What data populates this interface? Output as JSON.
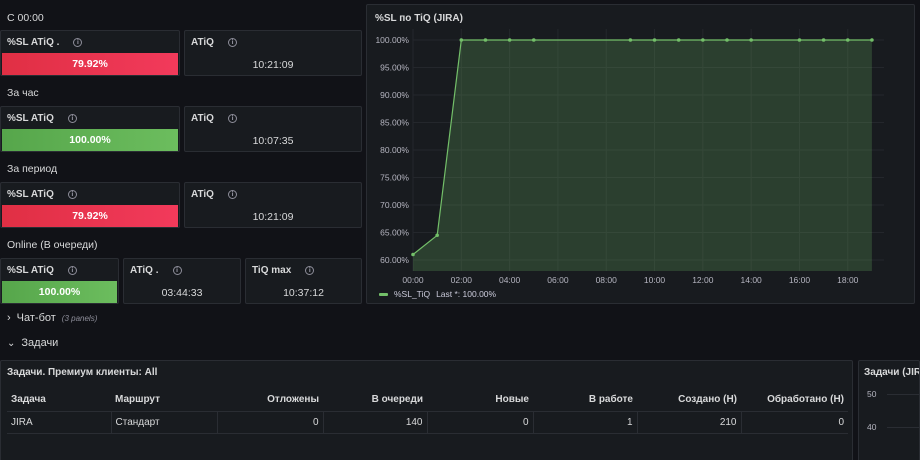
{
  "sections": {
    "since_midnight": "С 00:00",
    "per_hour": "За час",
    "per_period": "За период",
    "online": "Online (В очереди)"
  },
  "stat_panels": {
    "p1_sl": {
      "title": "%SL ATiQ .",
      "value": "79.92%",
      "status": "red"
    },
    "p1_atiq": {
      "title": "ATiQ",
      "value": "10:21:09"
    },
    "p2_sl": {
      "title": "%SL ATiQ",
      "value": "100.00%",
      "status": "green"
    },
    "p2_atiq": {
      "title": "ATiQ",
      "value": "10:07:35"
    },
    "p3_sl": {
      "title": "%SL ATiQ",
      "value": "79.92%",
      "status": "red"
    },
    "p3_atiq": {
      "title": "ATiQ",
      "value": "10:21:09"
    },
    "p4_sl": {
      "title": "%SL ATiQ",
      "value": "100.00%",
      "status": "green"
    },
    "p4_atiq": {
      "title": "ATiQ .",
      "value": "03:44:33"
    },
    "p4_tiq": {
      "title": "TiQ max",
      "value": "10:37:12"
    }
  },
  "chart_panel": {
    "title": "%SL по TiQ (JIRA)",
    "legend_label": "%SL_TiQ",
    "legend_last": "Last *: 100.00%"
  },
  "chart_data": {
    "type": "area",
    "title": "%SL по TiQ (JIRA)",
    "x_ticks": [
      "00:00",
      "02:00",
      "04:00",
      "06:00",
      "08:00",
      "10:00",
      "12:00",
      "14:00",
      "16:00",
      "18:00"
    ],
    "y_ticks": [
      "60.00%",
      "65.00%",
      "70.00%",
      "75.00%",
      "80.00%",
      "85.00%",
      "90.00%",
      "95.00%",
      "100.00%"
    ],
    "ylim": [
      58,
      102
    ],
    "xlim_hours": [
      0,
      19.5
    ],
    "grid": true,
    "legend_position": "bottom-left",
    "series": [
      {
        "name": "%SL_TiQ",
        "color": "#73bf69",
        "x_hours": [
          0,
          1,
          2,
          3,
          4,
          5,
          9,
          10,
          11,
          12,
          13,
          14,
          16,
          17,
          18,
          19
        ],
        "values": [
          61,
          64.5,
          100,
          100,
          100,
          100,
          100,
          100,
          100,
          100,
          100,
          100,
          100,
          100,
          100,
          100
        ]
      }
    ]
  },
  "rows": {
    "chatbot": {
      "title": "Чат-бот",
      "meta": "(3 panels)",
      "chevron": "›"
    },
    "tasks": {
      "title": "Задачи",
      "chevron": "⌄"
    }
  },
  "table_panel": {
    "title": "Задачи. Премиум клиенты: All",
    "columns": [
      "Задача",
      "Маршрут",
      "Отложены",
      "В очереди",
      "Новые",
      "В работе",
      "Создано (Н)",
      "Обработано (Н)"
    ],
    "rows": [
      [
        "JIRA",
        "Стандарт",
        "0",
        "140",
        "0",
        "1",
        "210",
        "0"
      ]
    ]
  },
  "right_panel": {
    "title": "Задачи (JIRA",
    "y_ticks": [
      "50",
      "40"
    ]
  }
}
